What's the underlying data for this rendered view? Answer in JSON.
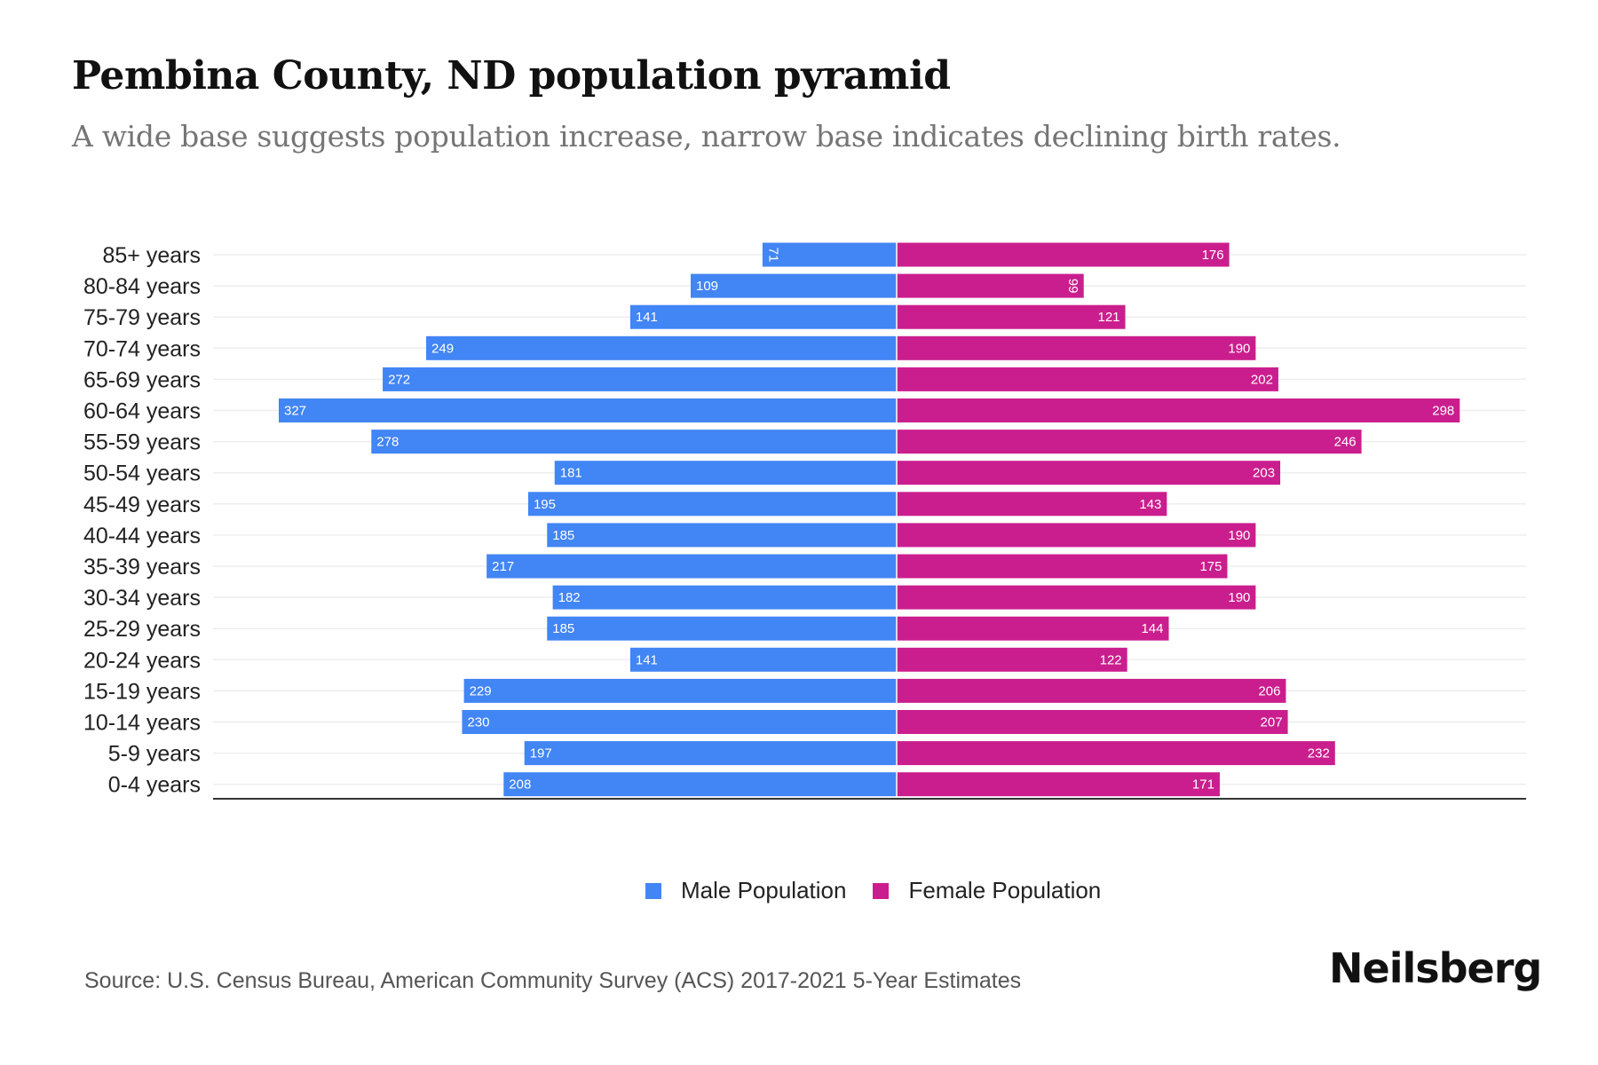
{
  "header": {
    "title": "Pembina County, ND population pyramid",
    "subtitle": "A wide base suggests population increase, narrow base indicates declining birth rates."
  },
  "footer": {
    "source": "Source: U.S. Census Bureau, American Community Survey (ACS) 2017-2021 5-Year Estimates",
    "brand": "Neilsberg"
  },
  "colors": {
    "male": "#4285f4",
    "female": "#cb1e8e",
    "grid": "#eeeeee",
    "axis": "#333333"
  },
  "chart_data": {
    "type": "bar",
    "orientation": "horizontal",
    "title": "Pembina County, ND population pyramid",
    "subtitle": "A wide base suggests population increase, narrow base indicates declining birth rates.",
    "xlabel": "",
    "ylabel": "",
    "xlim": [
      -327,
      327
    ],
    "grid": true,
    "legend_position": "bottom",
    "categories": [
      "85+ years",
      "80-84 years",
      "75-79 years",
      "70-74 years",
      "65-69 years",
      "60-64 years",
      "55-59 years",
      "50-54 years",
      "45-49 years",
      "40-44 years",
      "35-39 years",
      "30-34 years",
      "25-29 years",
      "20-24 years",
      "15-19 years",
      "10-14 years",
      "5-9 years",
      "0-4 years"
    ],
    "series": [
      {
        "name": "Male Population",
        "side": "left",
        "values": [
          71,
          109,
          141,
          249,
          272,
          327,
          278,
          181,
          195,
          185,
          217,
          182,
          185,
          141,
          229,
          230,
          197,
          208
        ]
      },
      {
        "name": "Female Population",
        "side": "right",
        "values": [
          176,
          99,
          121,
          190,
          202,
          298,
          246,
          203,
          143,
          190,
          175,
          190,
          144,
          122,
          206,
          207,
          232,
          171
        ]
      }
    ]
  }
}
